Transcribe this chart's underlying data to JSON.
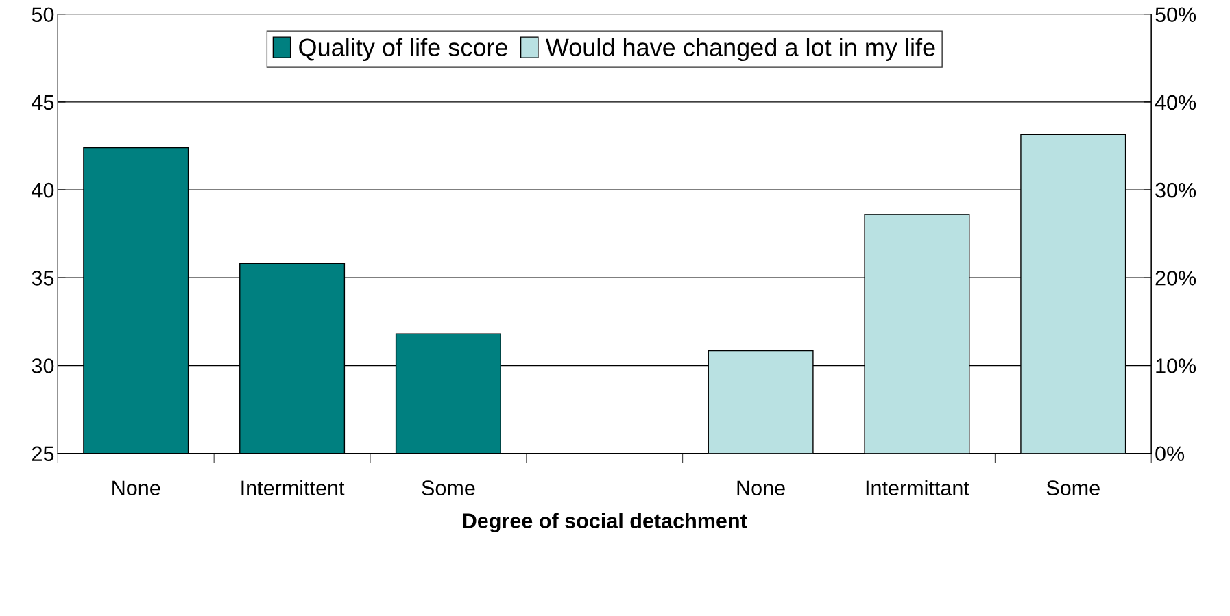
{
  "chart_data": {
    "type": "bar",
    "xlabel": "Degree of social detachment",
    "categories": [
      "None",
      "Intermittent",
      "Some",
      null,
      "None",
      "Intermittant",
      "Some"
    ],
    "series": [
      {
        "name": "Quality of life score",
        "color": "#008080",
        "values": [
          42.4,
          35.8,
          31.8,
          null,
          null,
          null,
          null
        ]
      },
      {
        "name": "Would have changed a lot in my life",
        "color": "#b9e1e2",
        "axis": "y2",
        "values": [
          null,
          null,
          null,
          null,
          11.7,
          27.2,
          36.3
        ]
      }
    ],
    "ylim": [
      25,
      50
    ],
    "yticks": [
      25,
      30,
      35,
      40,
      45,
      50
    ],
    "y2lim": [
      0,
      50
    ],
    "y2ticks": [
      {
        "value": 0,
        "label": "0%"
      },
      {
        "value": 10,
        "label": "10%"
      },
      {
        "value": 20,
        "label": "20%"
      },
      {
        "value": 30,
        "label": "30%"
      },
      {
        "value": 40,
        "label": "40%"
      },
      {
        "value": 50,
        "label": "50%"
      }
    ],
    "grid": "y",
    "legend": "top"
  }
}
